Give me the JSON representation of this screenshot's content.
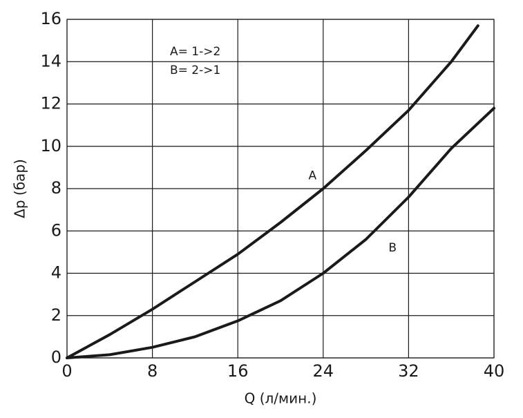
{
  "chart_data": {
    "type": "line",
    "x_label": "Q (л/мин.)",
    "y_label": "Δp (бар)",
    "annotations": [
      "A= 1->2",
      "B= 2->1"
    ],
    "x": [
      0,
      4,
      8,
      12,
      16,
      20,
      24,
      28,
      32,
      36,
      38.5
    ],
    "series": [
      {
        "name": "A",
        "color": "#1a1a1a",
        "values": [
          0,
          1.1,
          2.3,
          3.6,
          4.9,
          6.4,
          8.0,
          9.8,
          11.7,
          14.0,
          15.7
        ]
      }
    ],
    "series_b": {
      "name": "B",
      "color": "#1a1a1a",
      "x": [
        0,
        4,
        8,
        12,
        16,
        20,
        24,
        28,
        32,
        36,
        40
      ],
      "values": [
        0,
        0.15,
        0.5,
        1.0,
        1.75,
        2.7,
        4.0,
        5.6,
        7.6,
        9.9,
        11.8
      ]
    },
    "xlim": [
      0,
      40
    ],
    "xticks": [
      0,
      8,
      16,
      24,
      32,
      40
    ],
    "ylim": [
      0,
      16
    ],
    "yticks": [
      0,
      2,
      4,
      6,
      8,
      10,
      12,
      14,
      16
    ],
    "grid": true
  }
}
